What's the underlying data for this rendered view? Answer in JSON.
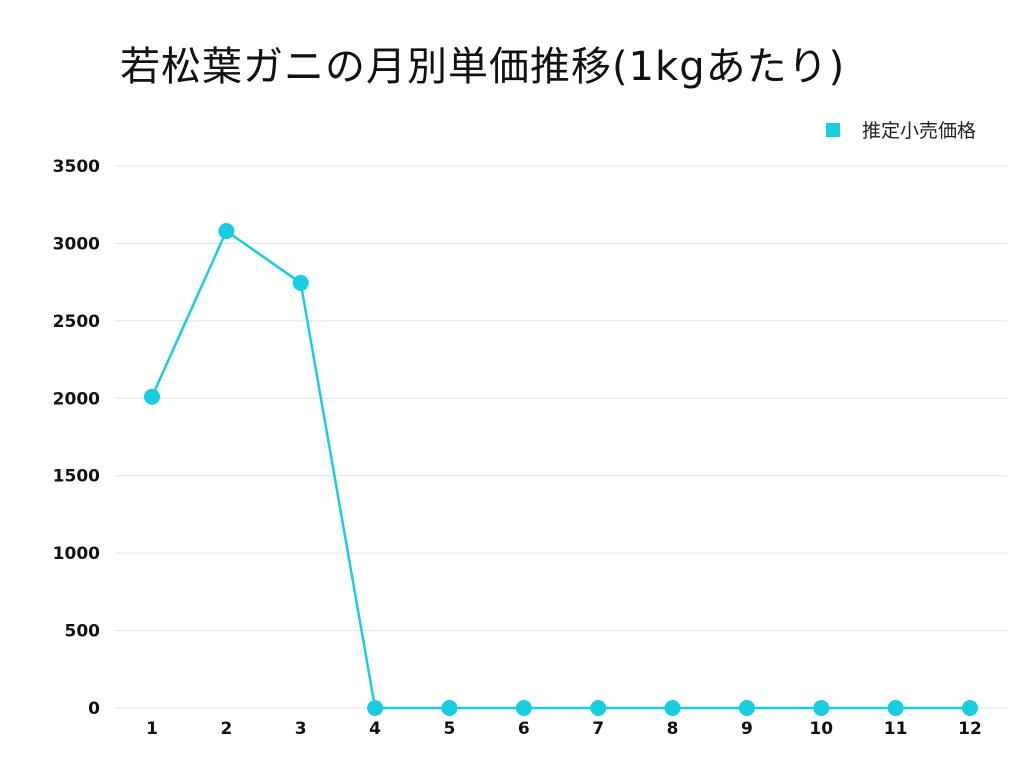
{
  "colors": {
    "series": "#19cde0",
    "grid": "#e3e3e3"
  },
  "chart_data": {
    "type": "line",
    "title": "若松葉ガニの月別単価推移(1kgあたり)",
    "xlabel": "",
    "ylabel": "",
    "x": [
      "1",
      "2",
      "3",
      "4",
      "5",
      "6",
      "7",
      "8",
      "9",
      "10",
      "11",
      "12"
    ],
    "series": [
      {
        "name": "推定小売価格",
        "values": [
          2010,
          3080,
          2745,
          0,
          0,
          0,
          0,
          0,
          0,
          0,
          0,
          0
        ]
      }
    ],
    "ylim": [
      0,
      3500
    ],
    "yticks": [
      "0",
      "500",
      "1000",
      "1500",
      "2000",
      "2500",
      "3000",
      "3500"
    ],
    "grid": true,
    "legend": "top-right"
  }
}
